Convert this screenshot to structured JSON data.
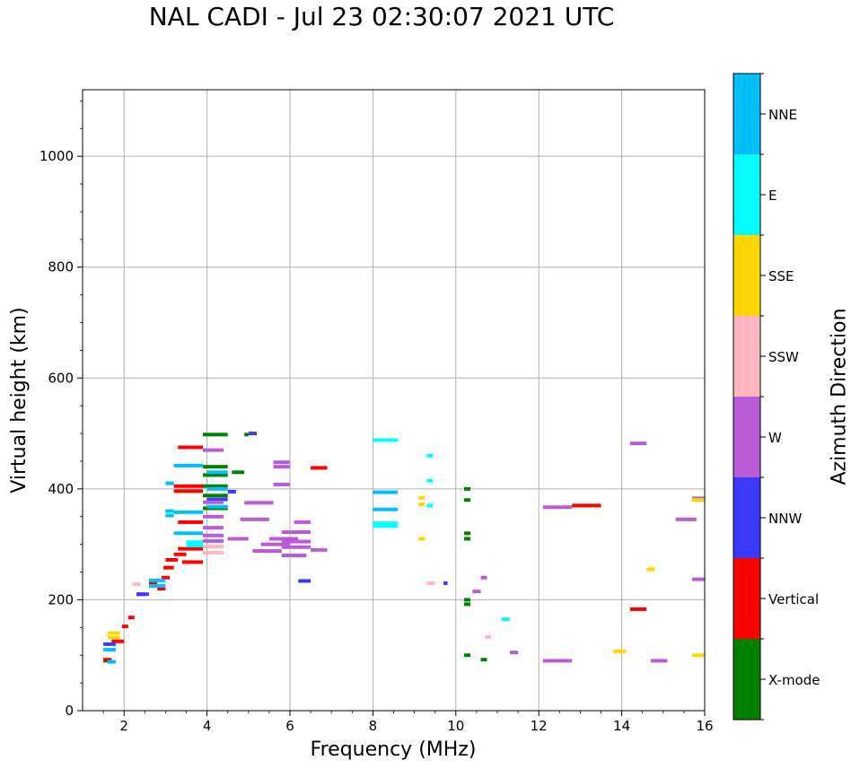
{
  "chart_data": {
    "type": "scatter",
    "title": "NAL CADI - Jul 23 02:30:07 2021 UTC",
    "xlabel": "Frequency (MHz)",
    "ylabel": "Virtual height (km)",
    "xlim": [
      1,
      16
    ],
    "ylim": [
      0,
      1120
    ],
    "xticks": [
      2,
      4,
      6,
      8,
      10,
      12,
      14,
      16
    ],
    "yticks": [
      0,
      200,
      400,
      600,
      800,
      1000
    ],
    "grid": true,
    "colorbar": {
      "label": "Azimuth Direction",
      "categories": [
        {
          "name": "X-mode",
          "color": "#008000"
        },
        {
          "name": "Vertical",
          "color": "#ff0000"
        },
        {
          "name": "NNW",
          "color": "#3a3aff"
        },
        {
          "name": "W",
          "color": "#b95ad6"
        },
        {
          "name": "SSW",
          "color": "#ffb6c1"
        },
        {
          "name": "SSE",
          "color": "#ffd700"
        },
        {
          "name": "E",
          "color": "#00ffff"
        },
        {
          "name": "NNE",
          "color": "#00bfff"
        }
      ]
    },
    "series": [
      {
        "name": "X-mode",
        "segments": [
          [
            3.9,
            4.5,
            498
          ],
          [
            3.9,
            4.5,
            440
          ],
          [
            3.9,
            4.5,
            425
          ],
          [
            3.9,
            4.5,
            405
          ],
          [
            3.9,
            4.5,
            388
          ],
          [
            3.9,
            4.5,
            365
          ],
          [
            4.6,
            4.9,
            430
          ],
          [
            4.9,
            5.0,
            498
          ],
          [
            10.2,
            10.35,
            400
          ],
          [
            10.2,
            10.35,
            380
          ],
          [
            10.2,
            10.35,
            320
          ],
          [
            10.2,
            10.35,
            310
          ],
          [
            10.2,
            10.35,
            200
          ],
          [
            10.2,
            10.35,
            192
          ],
          [
            10.2,
            10.35,
            100
          ],
          [
            10.6,
            10.75,
            92
          ],
          [
            1.5,
            1.6,
            90
          ]
        ]
      },
      {
        "name": "Vertical",
        "segments": [
          [
            1.5,
            1.7,
            92
          ],
          [
            1.7,
            2.0,
            125
          ],
          [
            1.95,
            2.1,
            152
          ],
          [
            2.1,
            2.25,
            168
          ],
          [
            2.3,
            2.5,
            210
          ],
          [
            2.6,
            2.8,
            230
          ],
          [
            2.8,
            3.0,
            220
          ],
          [
            2.9,
            3.1,
            240
          ],
          [
            2.95,
            3.2,
            258
          ],
          [
            3.0,
            3.3,
            272
          ],
          [
            3.2,
            3.5,
            282
          ],
          [
            3.4,
            3.9,
            268
          ],
          [
            3.3,
            3.9,
            292
          ],
          [
            3.3,
            3.9,
            340
          ],
          [
            3.2,
            3.9,
            405
          ],
          [
            3.2,
            3.9,
            396
          ],
          [
            3.3,
            3.9,
            475
          ],
          [
            6.5,
            6.9,
            438
          ],
          [
            12.8,
            13.5,
            370
          ],
          [
            14.2,
            14.6,
            183
          ]
        ]
      },
      {
        "name": "NNW",
        "segments": [
          [
            1.5,
            1.8,
            120
          ],
          [
            2.3,
            2.6,
            210
          ],
          [
            4.0,
            4.5,
            381
          ],
          [
            4.5,
            4.7,
            395
          ],
          [
            5.0,
            5.2,
            500
          ],
          [
            6.2,
            6.5,
            234
          ],
          [
            9.7,
            9.8,
            230
          ]
        ]
      },
      {
        "name": "W",
        "segments": [
          [
            3.9,
            4.4,
            316
          ],
          [
            3.9,
            4.4,
            306
          ],
          [
            3.9,
            4.4,
            330
          ],
          [
            3.9,
            4.4,
            350
          ],
          [
            3.9,
            4.4,
            376
          ],
          [
            3.9,
            4.4,
            470
          ],
          [
            4.5,
            5.0,
            310
          ],
          [
            4.8,
            5.5,
            345
          ],
          [
            4.9,
            5.6,
            375
          ],
          [
            5.1,
            5.8,
            288
          ],
          [
            5.3,
            6.0,
            300
          ],
          [
            5.5,
            6.2,
            310
          ],
          [
            5.8,
            6.4,
            280
          ],
          [
            5.8,
            6.5,
            295
          ],
          [
            5.8,
            6.5,
            305
          ],
          [
            5.8,
            6.5,
            322
          ],
          [
            6.1,
            6.5,
            340
          ],
          [
            5.6,
            6.0,
            408
          ],
          [
            5.6,
            6.0,
            448
          ],
          [
            5.6,
            6.0,
            440
          ],
          [
            6.5,
            6.9,
            290
          ],
          [
            12.1,
            12.8,
            367
          ],
          [
            12.1,
            12.8,
            90
          ],
          [
            14.2,
            14.6,
            482
          ],
          [
            15.3,
            15.8,
            345
          ],
          [
            15.7,
            16.0,
            383
          ],
          [
            15.7,
            16.0,
            237
          ],
          [
            14.7,
            15.1,
            90
          ],
          [
            10.4,
            10.6,
            215
          ],
          [
            10.6,
            10.75,
            240
          ],
          [
            11.3,
            11.5,
            105
          ]
        ]
      },
      {
        "name": "SSW",
        "segments": [
          [
            3.9,
            4.4,
            285
          ],
          [
            3.9,
            4.4,
            296
          ],
          [
            2.2,
            2.4,
            228
          ],
          [
            9.3,
            9.5,
            230
          ],
          [
            10.7,
            10.85,
            133
          ]
        ]
      },
      {
        "name": "SSE",
        "segments": [
          [
            1.6,
            1.9,
            140
          ],
          [
            1.6,
            1.9,
            132
          ],
          [
            9.1,
            9.25,
            384
          ],
          [
            9.1,
            9.25,
            372
          ],
          [
            9.1,
            9.25,
            310
          ],
          [
            13.8,
            14.1,
            107
          ],
          [
            14.6,
            14.8,
            255
          ],
          [
            15.7,
            16.0,
            380
          ],
          [
            15.7,
            16.0,
            100
          ]
        ]
      },
      {
        "name": "E",
        "segments": [
          [
            3.5,
            3.9,
            298
          ],
          [
            3.5,
            3.9,
            304
          ],
          [
            8.0,
            8.6,
            338
          ],
          [
            8.0,
            8.6,
            333
          ],
          [
            8.0,
            8.6,
            488
          ],
          [
            9.3,
            9.45,
            460
          ],
          [
            9.3,
            9.45,
            415
          ],
          [
            9.3,
            9.45,
            370
          ],
          [
            11.1,
            11.3,
            165
          ]
        ]
      },
      {
        "name": "NNE",
        "segments": [
          [
            1.5,
            1.8,
            110
          ],
          [
            2.6,
            3.0,
            225
          ],
          [
            2.6,
            3.0,
            235
          ],
          [
            3.0,
            3.2,
            360
          ],
          [
            3.0,
            3.2,
            352
          ],
          [
            3.0,
            3.2,
            410
          ],
          [
            3.2,
            3.9,
            442
          ],
          [
            3.2,
            3.9,
            358
          ],
          [
            3.2,
            3.9,
            320
          ],
          [
            4.0,
            4.5,
            430
          ],
          [
            4.0,
            4.5,
            400
          ],
          [
            4.0,
            4.5,
            368
          ],
          [
            8.0,
            8.6,
            394
          ],
          [
            8.0,
            8.6,
            363
          ],
          [
            1.6,
            1.8,
            88
          ]
        ]
      }
    ]
  }
}
